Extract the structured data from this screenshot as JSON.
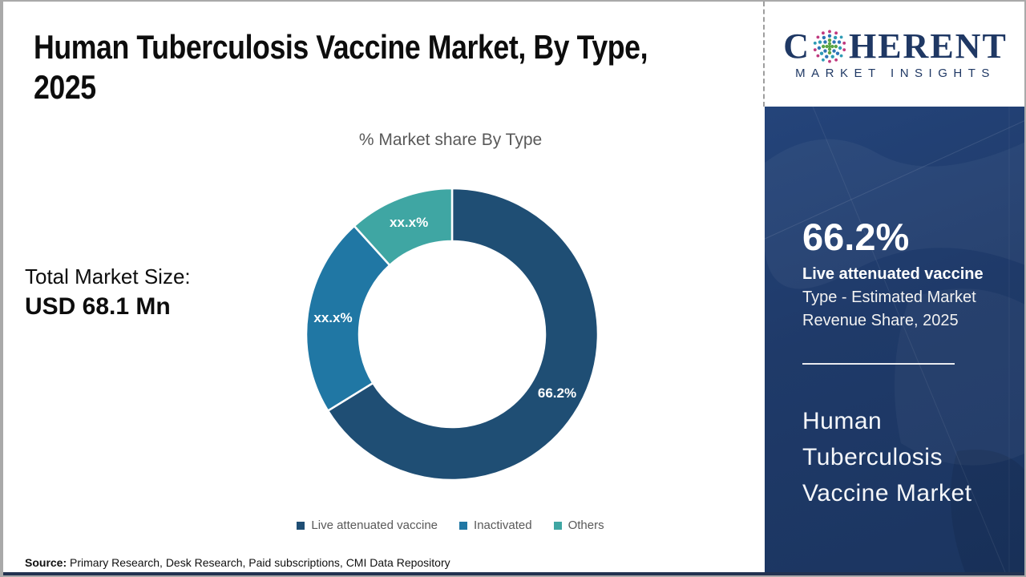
{
  "page": {
    "title_line1": "Human Tuberculosis Vaccine Market, By Type,",
    "title_line2": "2025",
    "total_label": "Total Market Size:",
    "total_value": "USD 68.1 Mn",
    "source_label": "Source:",
    "source_text": " Primary Research, Desk Research, Paid subscriptions, CMI Data Repository"
  },
  "logo": {
    "brand_c": "C",
    "brand_rest": "HERENT",
    "brand_sub": "MARKET INSIGHTS",
    "navy": "#1F3864",
    "dot_green": "#5BA546",
    "dot_blue": "#2E75B6",
    "dot_teal": "#2E9BB5",
    "dot_magenta": "#C0397E"
  },
  "sidebar": {
    "stat_value": "66.2%",
    "stat_label_bold": "Live attenuated vaccine",
    "stat_label_line2": "Type - Estimated Market",
    "stat_label_line3": "Revenue Share, 2025",
    "market_name_lines": [
      "Human",
      "Tuberculosis",
      "Vaccine Market"
    ],
    "bg_color": "#1F3A69"
  },
  "chart_data": {
    "type": "pie",
    "donut": true,
    "title": "% Market share By Type",
    "categories": [
      "Live attenuated vaccine",
      "Inactivated",
      "Others"
    ],
    "values": [
      66.2,
      22.1,
      11.7
    ],
    "slice_labels": [
      "66.2%",
      "xx.x%",
      "xx.x%"
    ],
    "colors": [
      "#1F4E74",
      "#2077A4",
      "#3FA6A3"
    ],
    "start_angle_deg": 0,
    "direction": "clockwise",
    "inner_radius_ratio": 0.64,
    "legend_position": "bottom",
    "legend_text_color": "#595959"
  }
}
